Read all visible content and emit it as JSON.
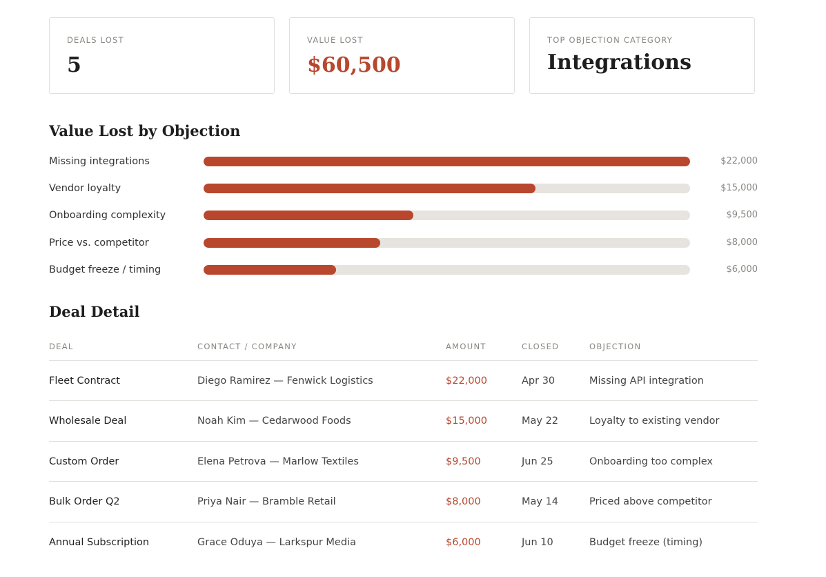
{
  "kpis": [
    {
      "label": "DEALS LOST",
      "value": "5"
    },
    {
      "label": "VALUE LOST",
      "value": "$60,500"
    },
    {
      "label": "TOP OBJECTION CATEGORY",
      "value": "Integrations"
    }
  ],
  "chart_data": {
    "type": "bar",
    "title": "Value Lost by Objection",
    "categories": [
      "Missing integrations",
      "Vendor loyalty",
      "Onboarding complexity",
      "Price vs. competitor",
      "Budget freeze / timing"
    ],
    "values": [
      22000,
      15000,
      9500,
      8000,
      6000
    ],
    "value_labels": [
      "$22,000",
      "$15,000",
      "$9,500",
      "$8,000",
      "$6,000"
    ],
    "xlim": [
      0,
      22000
    ],
    "orientation": "horizontal",
    "colors": {
      "fill": "#b8472d",
      "track": "#e7e4df"
    }
  },
  "detail": {
    "title": "Deal Detail",
    "headers": [
      "DEAL",
      "CONTACT / COMPANY",
      "AMOUNT",
      "CLOSED",
      "OBJECTION"
    ],
    "rows": [
      {
        "deal": "Fleet Contract",
        "contact": "Diego Ramirez — Fenwick Logistics",
        "amount": "$22,000",
        "closed": "Apr 30",
        "objection": "Missing API integration"
      },
      {
        "deal": "Wholesale Deal",
        "contact": "Noah Kim — Cedarwood Foods",
        "amount": "$15,000",
        "closed": "May 22",
        "objection": "Loyalty to existing vendor"
      },
      {
        "deal": "Custom Order",
        "contact": "Elena Petrova — Marlow Textiles",
        "amount": "$9,500",
        "closed": "Jun 25",
        "objection": "Onboarding too complex"
      },
      {
        "deal": "Bulk Order Q2",
        "contact": "Priya Nair — Bramble Retail",
        "amount": "$8,000",
        "closed": "May 14",
        "objection": "Priced above competitor"
      },
      {
        "deal": "Annual Subscription",
        "contact": "Grace Oduya — Larkspur Media",
        "amount": "$6,000",
        "closed": "Jun 10",
        "objection": "Budget freeze (timing)"
      }
    ]
  },
  "accent_color": "#b8472d"
}
